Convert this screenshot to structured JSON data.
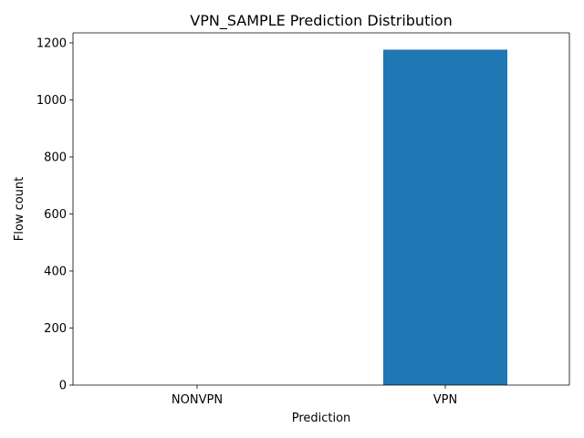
{
  "chart_data": {
    "type": "bar",
    "title": "VPN_SAMPLE Prediction Distribution",
    "xlabel": "Prediction",
    "ylabel": "Flow count",
    "categories": [
      "NONVPN",
      "VPN"
    ],
    "values": [
      0,
      1176
    ],
    "ylim": [
      0,
      1235
    ],
    "yticks": [
      0,
      200,
      400,
      600,
      800,
      1000,
      1200
    ],
    "bar_color": "#1f77b4",
    "grid": false,
    "legend": "none"
  }
}
